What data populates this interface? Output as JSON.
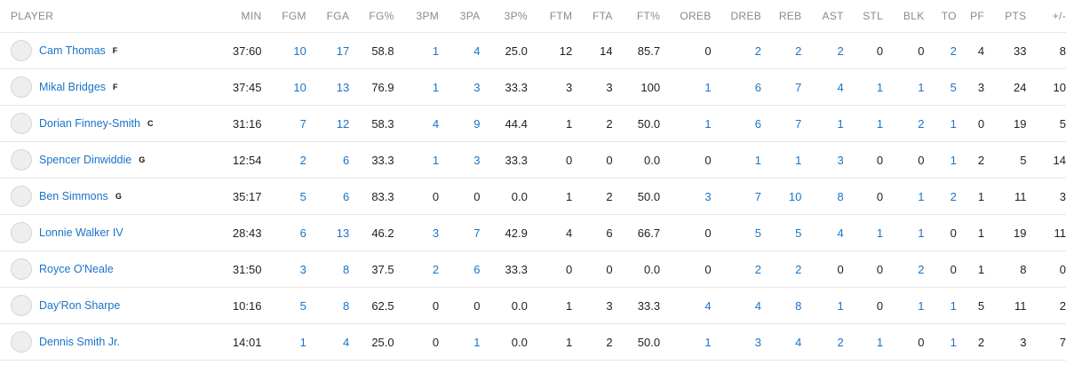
{
  "columns": [
    "PLAYER",
    "MIN",
    "FGM",
    "FGA",
    "FG%",
    "3PM",
    "3PA",
    "3P%",
    "FTM",
    "FTA",
    "FT%",
    "OREB",
    "DREB",
    "REB",
    "AST",
    "STL",
    "BLK",
    "TO",
    "PF",
    "PTS",
    "+/-"
  ],
  "link_columns": [
    "FGM",
    "FGA",
    "3PM",
    "3PA",
    "OREB",
    "DREB",
    "REB",
    "AST",
    "STL",
    "BLK",
    "TO"
  ],
  "players": [
    {
      "name": "Cam Thomas",
      "pos": "F",
      "avatar_icon": "player-headshot-icon",
      "stats": [
        "37:60",
        "10",
        "17",
        "58.8",
        "1",
        "4",
        "25.0",
        "12",
        "14",
        "85.7",
        "0",
        "2",
        "2",
        "2",
        "0",
        "0",
        "2",
        "4",
        "33",
        "8"
      ]
    },
    {
      "name": "Mikal Bridges",
      "pos": "F",
      "avatar_icon": "player-headshot-icon",
      "stats": [
        "37:45",
        "10",
        "13",
        "76.9",
        "1",
        "3",
        "33.3",
        "3",
        "3",
        "100",
        "1",
        "6",
        "7",
        "4",
        "1",
        "1",
        "5",
        "3",
        "24",
        "10"
      ]
    },
    {
      "name": "Dorian Finney-Smith",
      "pos": "C",
      "avatar_icon": "player-headshot-icon",
      "stats": [
        "31:16",
        "7",
        "12",
        "58.3",
        "4",
        "9",
        "44.4",
        "1",
        "2",
        "50.0",
        "1",
        "6",
        "7",
        "1",
        "1",
        "2",
        "1",
        "0",
        "19",
        "5"
      ]
    },
    {
      "name": "Spencer Dinwiddie",
      "pos": "G",
      "avatar_icon": "player-headshot-icon",
      "stats": [
        "12:54",
        "2",
        "6",
        "33.3",
        "1",
        "3",
        "33.3",
        "0",
        "0",
        "0.0",
        "0",
        "1",
        "1",
        "3",
        "0",
        "0",
        "1",
        "2",
        "5",
        "14"
      ]
    },
    {
      "name": "Ben Simmons",
      "pos": "G",
      "avatar_icon": "player-headshot-icon",
      "stats": [
        "35:17",
        "5",
        "6",
        "83.3",
        "0",
        "0",
        "0.0",
        "1",
        "2",
        "50.0",
        "3",
        "7",
        "10",
        "8",
        "0",
        "1",
        "2",
        "1",
        "11",
        "3"
      ]
    },
    {
      "name": "Lonnie Walker IV",
      "pos": "",
      "avatar_icon": "player-headshot-icon",
      "stats": [
        "28:43",
        "6",
        "13",
        "46.2",
        "3",
        "7",
        "42.9",
        "4",
        "6",
        "66.7",
        "0",
        "5",
        "5",
        "4",
        "1",
        "1",
        "0",
        "1",
        "19",
        "11"
      ]
    },
    {
      "name": "Royce O'Neale",
      "pos": "",
      "avatar_icon": "player-headshot-icon",
      "stats": [
        "31:50",
        "3",
        "8",
        "37.5",
        "2",
        "6",
        "33.3",
        "0",
        "0",
        "0.0",
        "0",
        "2",
        "2",
        "0",
        "0",
        "2",
        "0",
        "1",
        "8",
        "0"
      ]
    },
    {
      "name": "Day'Ron Sharpe",
      "pos": "",
      "avatar_icon": "player-headshot-icon",
      "stats": [
        "10:16",
        "5",
        "8",
        "62.5",
        "0",
        "0",
        "0.0",
        "1",
        "3",
        "33.3",
        "4",
        "4",
        "8",
        "1",
        "0",
        "1",
        "1",
        "5",
        "11",
        "2"
      ]
    },
    {
      "name": "Dennis Smith Jr.",
      "pos": "",
      "avatar_icon": "player-headshot-icon",
      "stats": [
        "14:01",
        "1",
        "4",
        "25.0",
        "0",
        "1",
        "0.0",
        "1",
        "2",
        "50.0",
        "1",
        "3",
        "4",
        "2",
        "1",
        "0",
        "1",
        "2",
        "3",
        "7"
      ]
    }
  ],
  "colors": {
    "link": "#1a73c9",
    "header": "#8a8a8a",
    "text": "#1f1f1f",
    "border": "#e6e6e6"
  }
}
